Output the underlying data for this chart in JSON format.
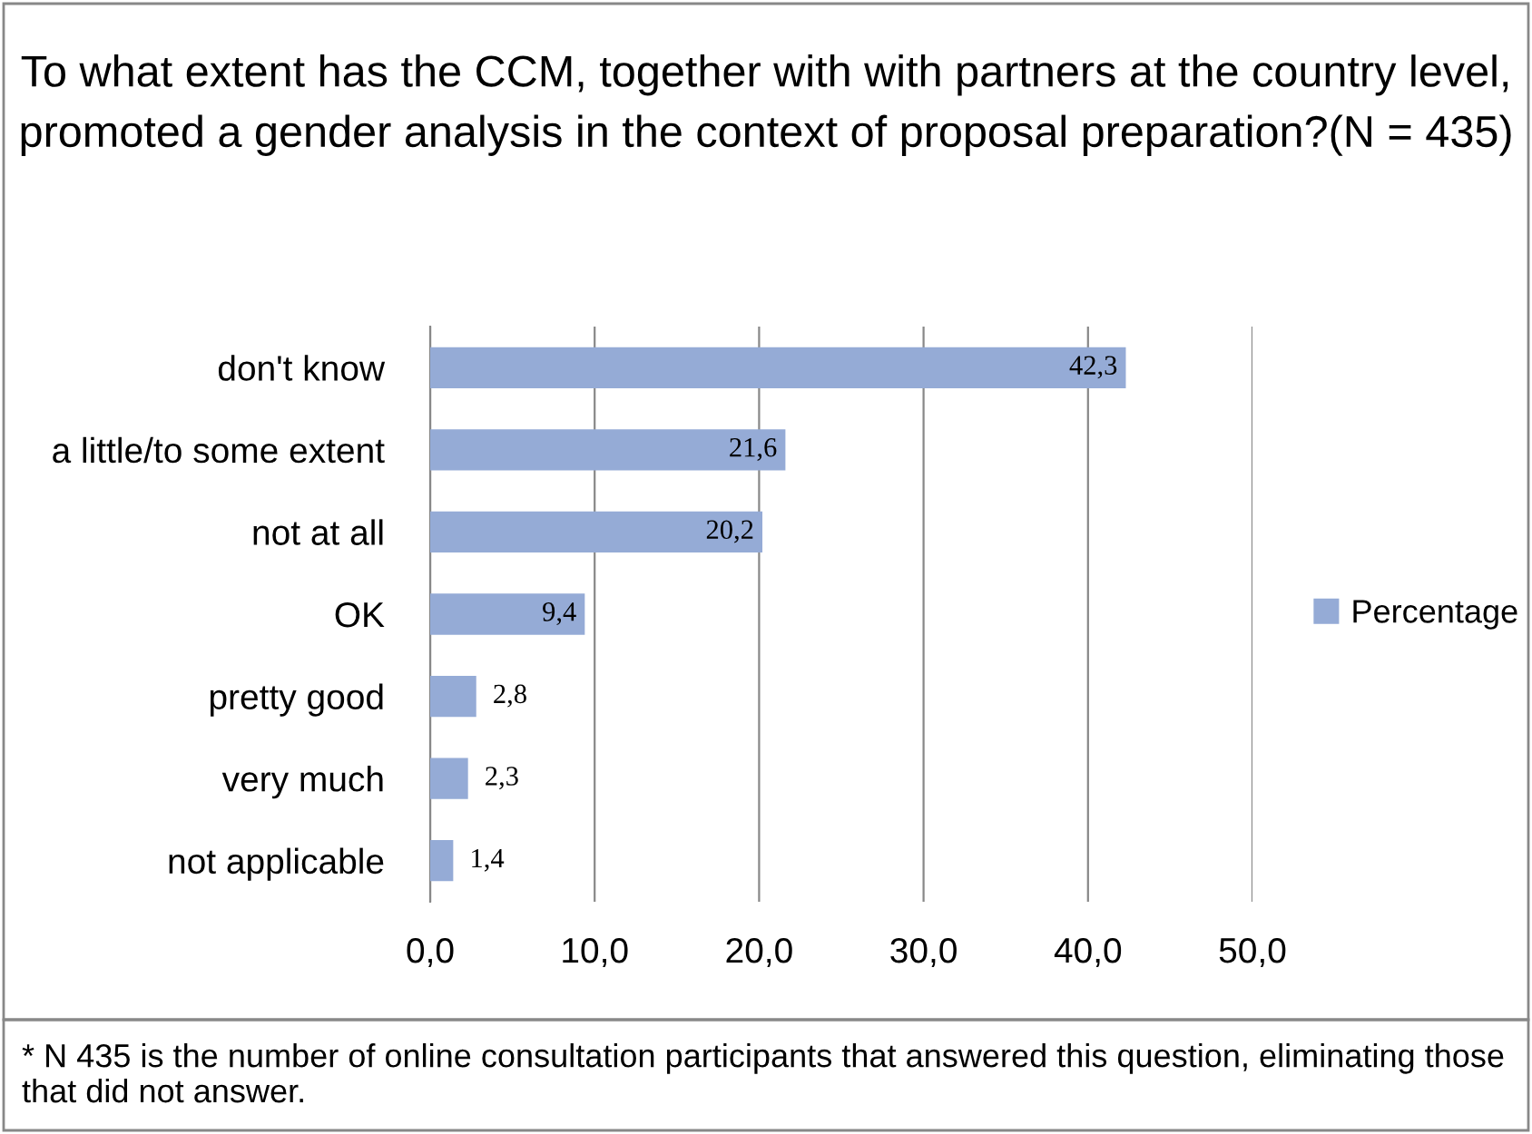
{
  "chart_data": {
    "type": "bar",
    "orientation": "horizontal",
    "title": "To what extent has the CCM, together with with partners at the country level, promoted a gender analysis in the context of proposal preparation?(N = 435)",
    "categories": [
      "don't know",
      "a little/to some extent",
      "not at all",
      "OK",
      "pretty good",
      "very much",
      "not applicable"
    ],
    "series": [
      {
        "name": "Percentage",
        "color": "#95abd6",
        "values": [
          42.3,
          21.6,
          20.2,
          9.4,
          2.8,
          2.3,
          1.4
        ],
        "value_labels": [
          "42,3",
          "21,6",
          "20,2",
          "9,4",
          "2,8",
          "2,3",
          "1,4"
        ]
      }
    ],
    "xlim": [
      0,
      50
    ],
    "xticks": [
      {
        "value": 0,
        "label": "0,0"
      },
      {
        "value": 10,
        "label": "10,0"
      },
      {
        "value": 20,
        "label": "20,0"
      },
      {
        "value": 30,
        "label": "30,0"
      },
      {
        "value": 40,
        "label": "40,0"
      },
      {
        "value": 50,
        "label": "50,0"
      }
    ],
    "grid": "x",
    "legend": "right",
    "annotations": [
      "* N 435 is the number of online consultation participants that answered this question, eliminating those that did not answer."
    ]
  }
}
